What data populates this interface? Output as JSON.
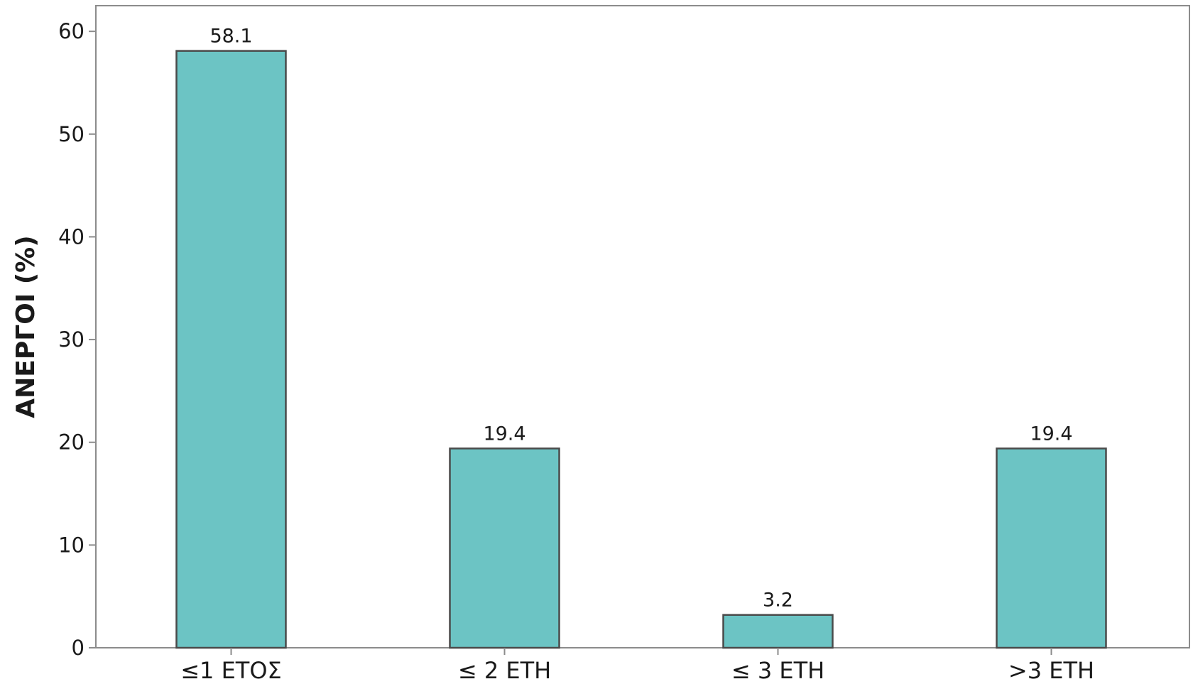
{
  "chart_data": {
    "type": "bar",
    "title": "",
    "xlabel": "",
    "ylabel": "ΑΝΕΡΓΟΙ (%)",
    "categories": [
      "≤1 ΕΤΟΣ",
      "≤ 2 ΕΤΗ",
      "≤ 3 ΕΤΗ",
      ">3 ΕΤΗ"
    ],
    "values": [
      58.1,
      19.4,
      3.2,
      19.4
    ],
    "data_labels": [
      "58.1",
      "19.4",
      "3.2",
      "19.4"
    ],
    "ylim": [
      0,
      62.5
    ],
    "yticks": [
      0,
      10,
      20,
      30,
      40,
      50,
      60
    ],
    "grid": false,
    "legend": "none",
    "colors": {
      "bar_fill": "#6cc4c4",
      "bar_stroke": "#4a4a4a",
      "axis": "#8c8c8c"
    }
  }
}
